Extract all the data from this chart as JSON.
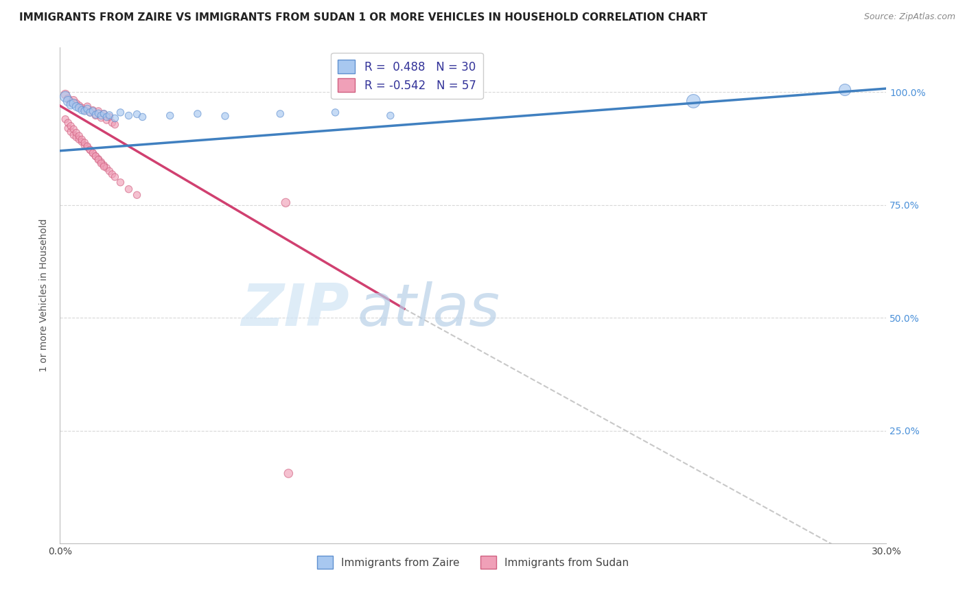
{
  "title": "IMMIGRANTS FROM ZAIRE VS IMMIGRANTS FROM SUDAN 1 OR MORE VEHICLES IN HOUSEHOLD CORRELATION CHART",
  "source": "Source: ZipAtlas.com",
  "ylabel": "1 or more Vehicles in Household",
  "xlim": [
    0.0,
    0.3
  ],
  "ylim": [
    0.0,
    1.1
  ],
  "xticks": [
    0.0,
    0.05,
    0.1,
    0.15,
    0.2,
    0.25,
    0.3
  ],
  "xticklabels": [
    "0.0%",
    "",
    "",
    "",
    "",
    "",
    "30.0%"
  ],
  "yticks": [
    0.0,
    0.25,
    0.5,
    0.75,
    1.0
  ],
  "yticklabels": [
    "",
    "25.0%",
    "50.0%",
    "75.0%",
    "100.0%"
  ],
  "watermark_zip": "ZIP",
  "watermark_atlas": "atlas",
  "legend_zaire": "Immigrants from Zaire",
  "legend_sudan": "Immigrants from Sudan",
  "R_zaire": 0.488,
  "N_zaire": 30,
  "R_sudan": -0.542,
  "N_sudan": 57,
  "zaire_color": "#a8c8f0",
  "sudan_color": "#f0a0b8",
  "zaire_edge_color": "#6090d0",
  "sudan_edge_color": "#d06080",
  "zaire_line_color": "#4080c0",
  "sudan_line_color": "#d04070",
  "gray_dashed_color": "#c8c8c8",
  "background_color": "#ffffff",
  "grid_color": "#d8d8d8",
  "zaire_points": [
    [
      0.002,
      0.99
    ],
    [
      0.003,
      0.98
    ],
    [
      0.004,
      0.972
    ],
    [
      0.005,
      0.975
    ],
    [
      0.006,
      0.968
    ],
    [
      0.007,
      0.965
    ],
    [
      0.008,
      0.96
    ],
    [
      0.009,
      0.958
    ],
    [
      0.01,
      0.963
    ],
    [
      0.011,
      0.955
    ],
    [
      0.012,
      0.958
    ],
    [
      0.013,
      0.95
    ],
    [
      0.014,
      0.953
    ],
    [
      0.015,
      0.948
    ],
    [
      0.016,
      0.952
    ],
    [
      0.017,
      0.945
    ],
    [
      0.018,
      0.949
    ],
    [
      0.02,
      0.942
    ],
    [
      0.022,
      0.955
    ],
    [
      0.025,
      0.948
    ],
    [
      0.028,
      0.951
    ],
    [
      0.03,
      0.945
    ],
    [
      0.04,
      0.948
    ],
    [
      0.05,
      0.952
    ],
    [
      0.06,
      0.947
    ],
    [
      0.08,
      0.952
    ],
    [
      0.1,
      0.955
    ],
    [
      0.12,
      0.948
    ],
    [
      0.23,
      0.98
    ],
    [
      0.285,
      1.005
    ]
  ],
  "zaire_sizes": [
    120,
    100,
    80,
    80,
    70,
    70,
    60,
    60,
    60,
    60,
    55,
    55,
    55,
    55,
    55,
    55,
    55,
    55,
    55,
    55,
    55,
    55,
    55,
    55,
    55,
    55,
    55,
    55,
    200,
    150
  ],
  "sudan_points": [
    [
      0.002,
      0.995
    ],
    [
      0.003,
      0.985
    ],
    [
      0.004,
      0.978
    ],
    [
      0.005,
      0.982
    ],
    [
      0.006,
      0.975
    ],
    [
      0.007,
      0.97
    ],
    [
      0.008,
      0.965
    ],
    [
      0.009,
      0.96
    ],
    [
      0.01,
      0.968
    ],
    [
      0.011,
      0.955
    ],
    [
      0.012,
      0.96
    ],
    [
      0.013,
      0.948
    ],
    [
      0.014,
      0.958
    ],
    [
      0.015,
      0.943
    ],
    [
      0.016,
      0.952
    ],
    [
      0.017,
      0.938
    ],
    [
      0.018,
      0.945
    ],
    [
      0.019,
      0.932
    ],
    [
      0.02,
      0.928
    ],
    [
      0.003,
      0.92
    ],
    [
      0.004,
      0.912
    ],
    [
      0.005,
      0.905
    ],
    [
      0.006,
      0.9
    ],
    [
      0.007,
      0.895
    ],
    [
      0.008,
      0.89
    ],
    [
      0.009,
      0.882
    ],
    [
      0.01,
      0.878
    ],
    [
      0.011,
      0.872
    ],
    [
      0.012,
      0.865
    ],
    [
      0.013,
      0.858
    ],
    [
      0.014,
      0.852
    ],
    [
      0.015,
      0.845
    ],
    [
      0.016,
      0.838
    ],
    [
      0.017,
      0.832
    ],
    [
      0.018,
      0.825
    ],
    [
      0.019,
      0.818
    ],
    [
      0.02,
      0.812
    ],
    [
      0.022,
      0.8
    ],
    [
      0.025,
      0.785
    ],
    [
      0.028,
      0.772
    ],
    [
      0.002,
      0.94
    ],
    [
      0.003,
      0.932
    ],
    [
      0.004,
      0.925
    ],
    [
      0.005,
      0.918
    ],
    [
      0.006,
      0.91
    ],
    [
      0.007,
      0.903
    ],
    [
      0.008,
      0.895
    ],
    [
      0.009,
      0.888
    ],
    [
      0.01,
      0.88
    ],
    [
      0.011,
      0.872
    ],
    [
      0.012,
      0.865
    ],
    [
      0.013,
      0.858
    ],
    [
      0.014,
      0.85
    ],
    [
      0.015,
      0.842
    ],
    [
      0.016,
      0.835
    ],
    [
      0.082,
      0.755
    ],
    [
      0.083,
      0.155
    ]
  ],
  "sudan_sizes": [
    80,
    70,
    65,
    65,
    60,
    60,
    60,
    60,
    60,
    60,
    55,
    55,
    55,
    55,
    55,
    55,
    55,
    55,
    55,
    55,
    55,
    55,
    55,
    55,
    55,
    55,
    55,
    55,
    55,
    55,
    55,
    55,
    55,
    55,
    55,
    55,
    55,
    55,
    55,
    55,
    55,
    55,
    55,
    55,
    55,
    55,
    55,
    55,
    55,
    55,
    55,
    55,
    55,
    55,
    55,
    80,
    80
  ],
  "zaire_trend": [
    0.0,
    0.3,
    0.87,
    1.008
  ],
  "sudan_trend_solid": [
    0.0,
    0.125,
    0.97,
    0.52
  ],
  "sudan_trend_dashed": [
    0.125,
    0.3,
    0.52,
    -0.068
  ],
  "title_fontsize": 11,
  "axis_label_fontsize": 10,
  "tick_fontsize": 10,
  "right_tick_color": "#4a90d9"
}
